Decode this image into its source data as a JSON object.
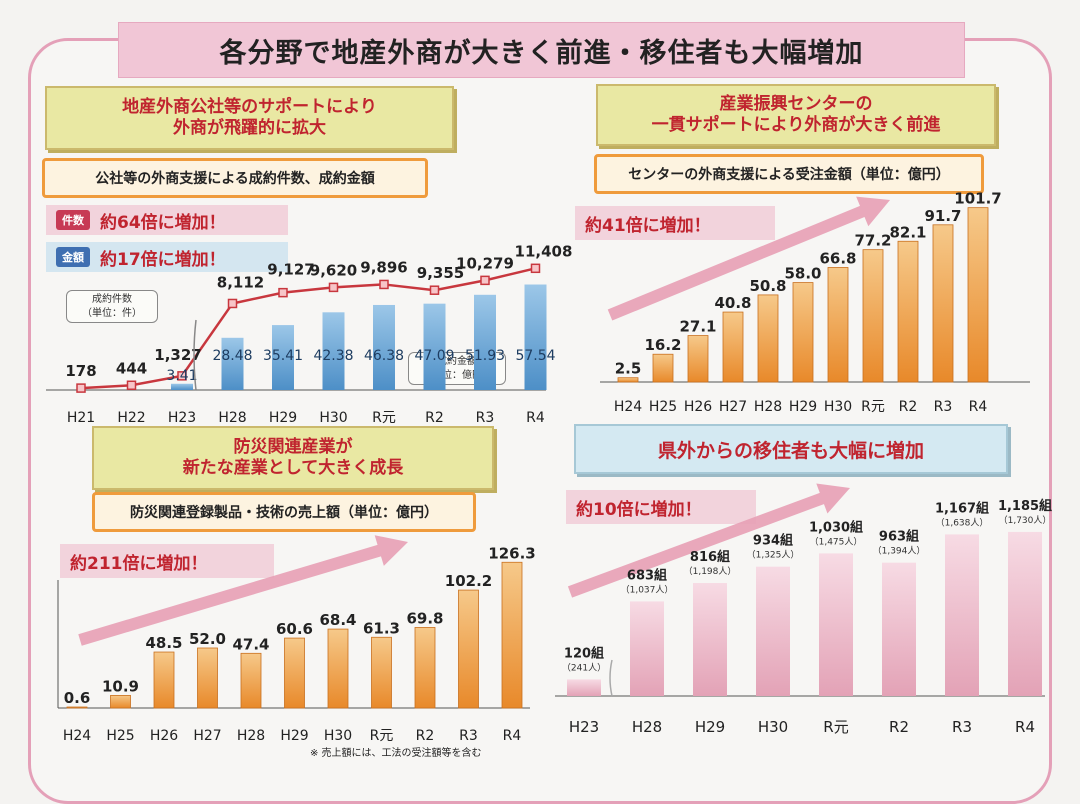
{
  "main_title": "各分野で地産外商が大きく前進・移住者も大幅増加",
  "panel1": {
    "heading": "地産外商公社等のサポートにより\n外商が飛躍的に拡大",
    "subheading": "公社等の外商支援による成約件数、成約金額",
    "tag_count": "件数",
    "banner_count": "約64倍に増加！",
    "tag_amount": "金額",
    "banner_amount": "約17倍に増加！",
    "note_count": "成約件数\n（単位：件）",
    "note_amount": "成約金額\n（単位：億円）"
  },
  "panel2": {
    "heading": "産業振興センターの\n一貫サポートにより外商が大きく前進",
    "subheading": "センターの外商支援による受注金額（単位：億円）",
    "banner": "約41倍に増加！"
  },
  "panel3": {
    "heading": "防災関連産業が\n新たな産業として大きく成長",
    "subheading": "防災関連登録製品・技術の売上額（単位：億円）",
    "banner": "約211倍に増加！",
    "footnote": "※ 売上額には、工法の受注額等を含む"
  },
  "panel4": {
    "heading": "県外からの移住者も大幅に増加",
    "banner": "約10倍に増加！"
  },
  "colors": {
    "orange": "#ef9a36",
    "blue": "#5b9bd0",
    "pink": "#e4a7bb",
    "line": "#c8373e"
  },
  "chart_data": [
    {
      "type": "bar",
      "title": "公社等の外商支援による成約件数、成約金額",
      "categories": [
        "H21",
        "H22",
        "H23",
        "H28",
        "H29",
        "H30",
        "R元",
        "R2",
        "R3",
        "R4"
      ],
      "series": [
        {
          "name": "成約件数",
          "kind": "line",
          "values": [
            178,
            444,
            1327,
            8112,
            9127,
            9620,
            9896,
            9355,
            10279,
            11408
          ],
          "labels": [
            "178",
            "444",
            "1,327",
            "8,112",
            "9,127",
            "9,620",
            "9,896",
            "9,355",
            "10,279",
            "11,408"
          ]
        },
        {
          "name": "成約金額",
          "kind": "bar",
          "values": [
            null,
            null,
            3.41,
            28.48,
            35.41,
            42.38,
            46.38,
            47.09,
            51.93,
            57.54
          ],
          "labels": [
            "",
            "",
            "3.41",
            "28.48",
            "35.41",
            "42.38",
            "46.38",
            "47.09",
            "51.93",
            "57.54"
          ]
        }
      ]
    },
    {
      "type": "bar",
      "title": "センターの外商支援による受注金額（単位：億円）",
      "categories": [
        "H24",
        "H25",
        "H26",
        "H27",
        "H28",
        "H29",
        "H30",
        "R元",
        "R2",
        "R3",
        "R4"
      ],
      "values": [
        2.5,
        16.2,
        27.1,
        40.8,
        50.8,
        58.0,
        66.8,
        77.2,
        82.1,
        91.7,
        101.7
      ],
      "labels": [
        "2.5",
        "16.2",
        "27.1",
        "40.8",
        "50.8",
        "58.0",
        "66.8",
        "77.2",
        "82.1",
        "91.7",
        "101.7"
      ]
    },
    {
      "type": "bar",
      "title": "防災関連登録製品・技術の売上額（単位：億円）",
      "categories": [
        "H24",
        "H25",
        "H26",
        "H27",
        "H28",
        "H29",
        "H30",
        "R元",
        "R2",
        "R3",
        "R4"
      ],
      "values": [
        0.6,
        10.9,
        48.5,
        52.0,
        47.4,
        60.6,
        68.4,
        61.3,
        69.8,
        102.2,
        126.3
      ],
      "labels": [
        "0.6",
        "10.9",
        "48.5",
        "52.0",
        "47.4",
        "60.6",
        "68.4",
        "61.3",
        "69.8",
        "102.2",
        "126.3"
      ]
    },
    {
      "type": "bar",
      "title": "県外からの移住者も大幅に増加",
      "categories": [
        "H23",
        "H28",
        "H29",
        "H30",
        "R元",
        "R2",
        "R3",
        "R4"
      ],
      "values": [
        120,
        683,
        816,
        934,
        1030,
        963,
        1167,
        1185
      ],
      "labels": [
        "120組",
        "683組",
        "816組",
        "934組",
        "1,030組",
        "963組",
        "1,167組",
        "1,185組"
      ],
      "sublabels": [
        "（241人）",
        "（1,037人）",
        "（1,198人）",
        "（1,325人）",
        "（1,475人）",
        "（1,394人）",
        "（1,638人）",
        "（1,730人）"
      ]
    }
  ]
}
